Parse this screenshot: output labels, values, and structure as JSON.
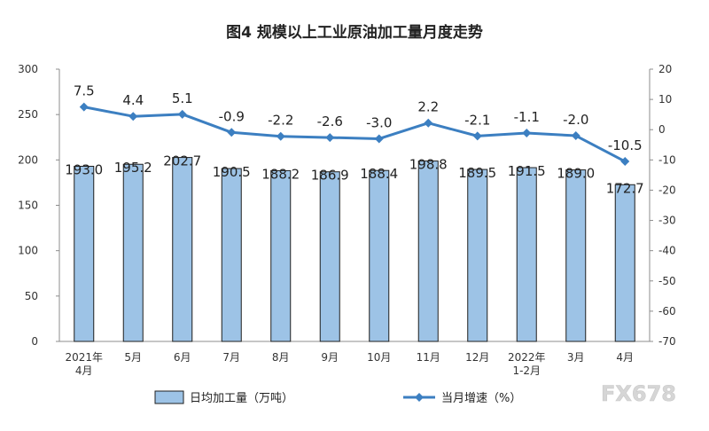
{
  "chart_data": {
    "type": "bar",
    "title": "图4  规模以上工业原油加工量月度走势",
    "categories": [
      "2021年\n4月",
      "5月",
      "6月",
      "7月",
      "8月",
      "9月",
      "10月",
      "11月",
      "12月",
      "2022年\n1-2月",
      "3月",
      "4月"
    ],
    "y_left": {
      "min": 0,
      "max": 300,
      "step": 50,
      "ticks": [
        0,
        50,
        100,
        150,
        200,
        250,
        300
      ]
    },
    "y_right": {
      "min": -70,
      "max": 20,
      "step": 10,
      "ticks": [
        20,
        10,
        0,
        -10,
        -20,
        -30,
        -40,
        -50,
        -60,
        -70
      ]
    },
    "grid": false,
    "legend_position": "bottom",
    "series": [
      {
        "name": "日均加工量（万吨）",
        "kind": "bar",
        "axis": "left",
        "color": "#9DC3E6",
        "values": [
          193.0,
          195.2,
          202.7,
          190.5,
          188.2,
          186.9,
          188.4,
          198.8,
          189.5,
          191.5,
          189.0,
          172.7
        ],
        "labels": [
          "193.0",
          "195.2",
          "202.7",
          "190.5",
          "188.2",
          "186.9",
          "188.4",
          "198.8",
          "189.5",
          "191.5",
          "189.0",
          "172.7"
        ]
      },
      {
        "name": "当月增速（%）",
        "kind": "line",
        "axis": "right",
        "color": "#3C7FC1",
        "values": [
          7.5,
          4.4,
          5.1,
          -0.9,
          -2.2,
          -2.6,
          -3.0,
          2.2,
          -2.1,
          -1.1,
          -2.0,
          -10.5
        ],
        "labels": [
          "7.5",
          "4.4",
          "5.1",
          "-0.9",
          "-2.2",
          "-2.6",
          "-3.0",
          "2.2",
          "-2.1",
          "-1.1",
          "-2.0",
          "-10.5"
        ]
      }
    ]
  },
  "watermark": {
    "text": "FX678"
  }
}
